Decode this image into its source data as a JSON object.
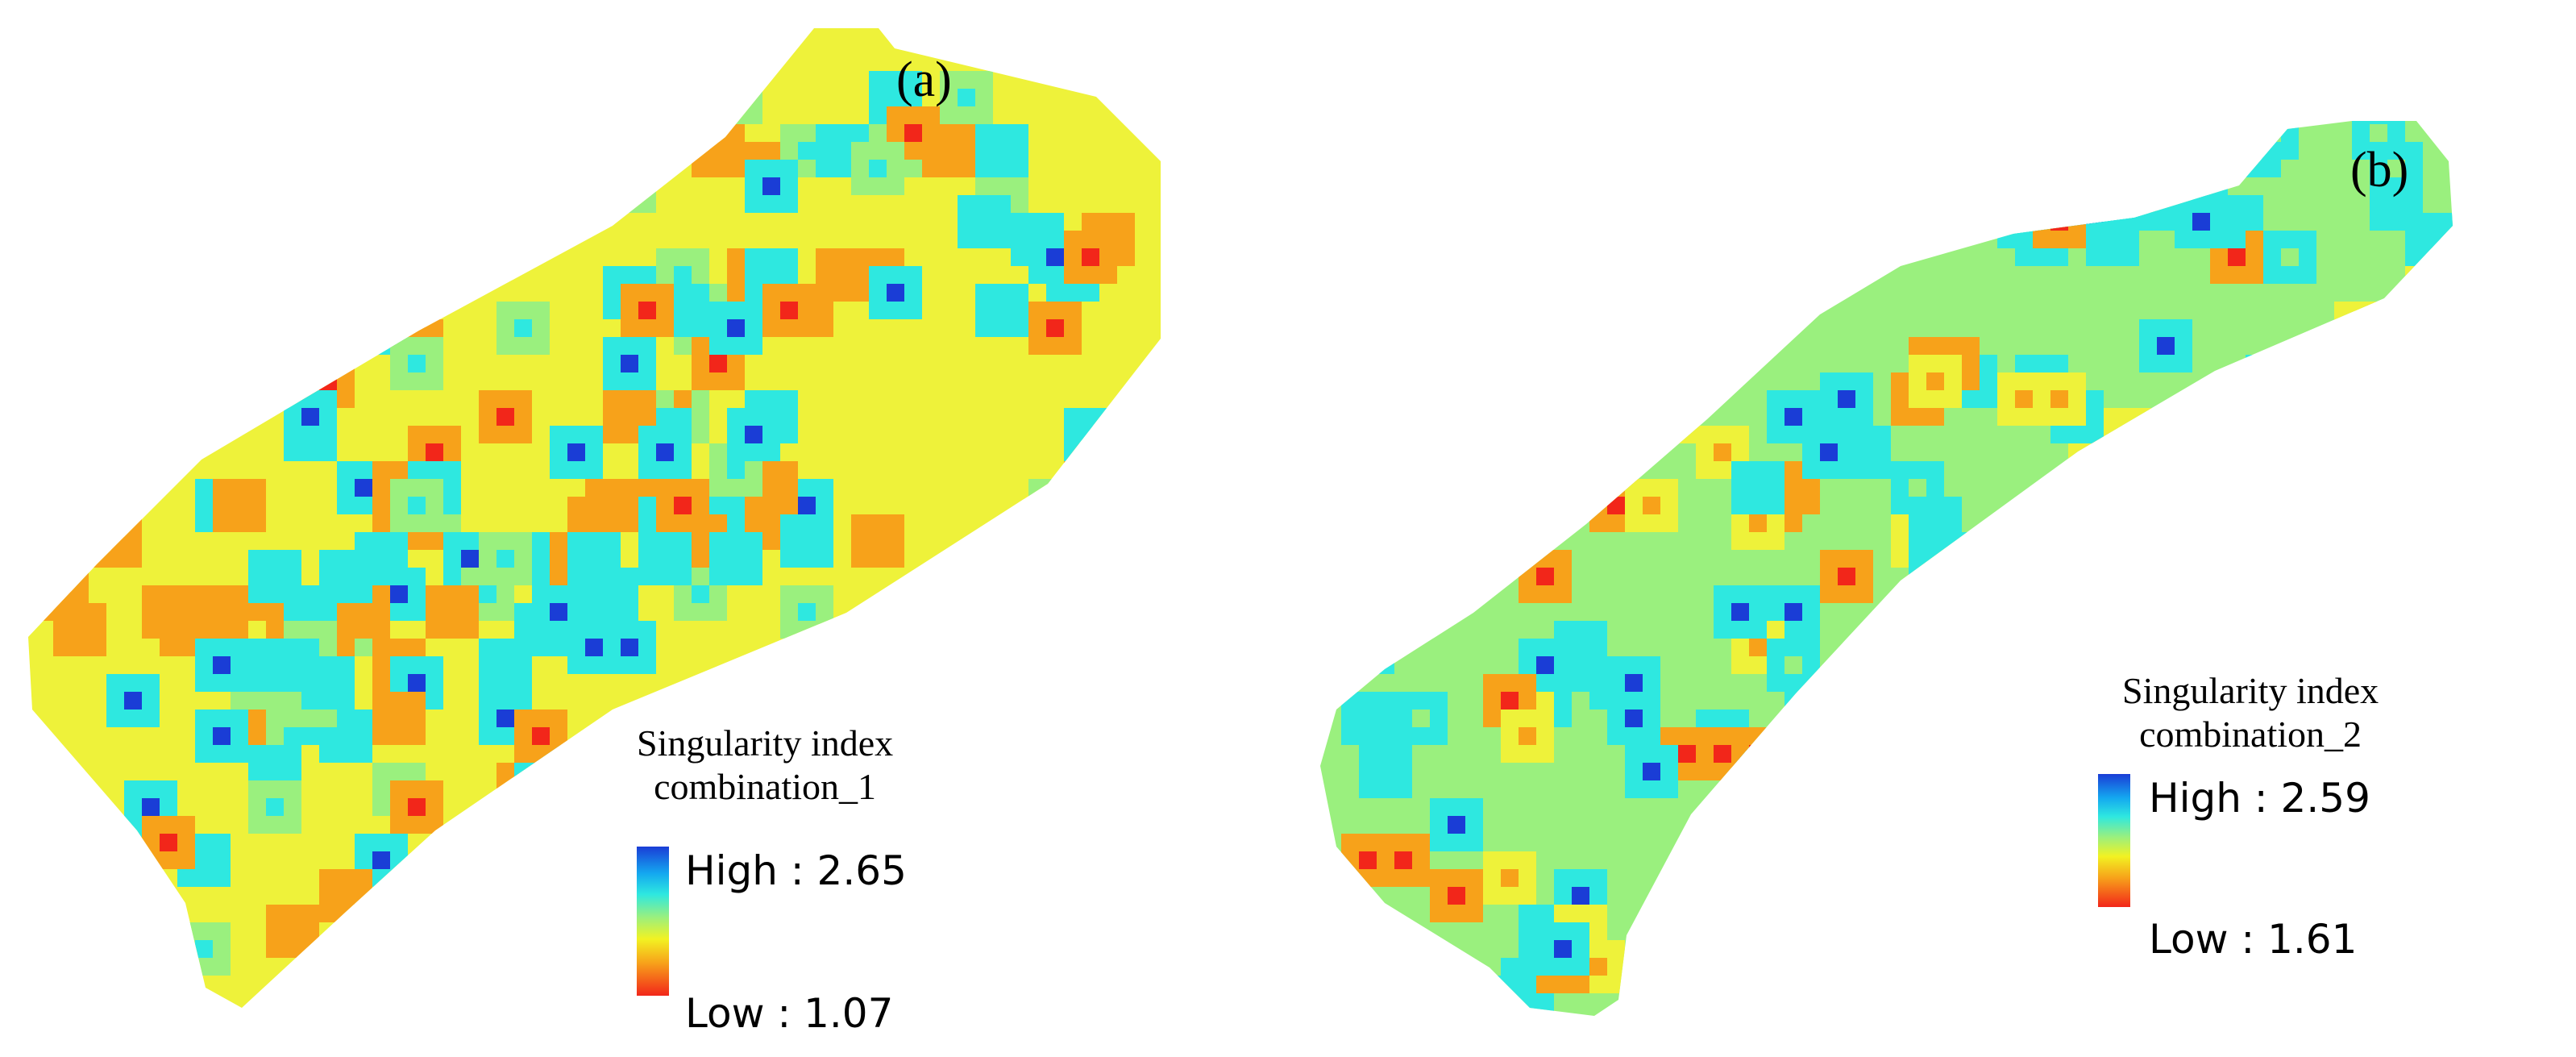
{
  "panels": [
    {
      "id": "a",
      "label": "(a)",
      "legend_title_line1": "Singularity index",
      "legend_title_line2": "combination_1",
      "legend_high": "High : 2.65",
      "legend_low": "Low : 1.07",
      "high_value": 2.65,
      "low_value": 1.07
    },
    {
      "id": "b",
      "label": "(b)",
      "legend_title_line1": "Singularity index",
      "legend_title_line2": "combination_2",
      "legend_high": "High : 2.59",
      "legend_low": "Low : 1.61",
      "high_value": 2.59,
      "low_value": 1.61
    }
  ],
  "colors": {
    "high": "#1a3dd6",
    "upper_mid": "#2ee8e0",
    "mid_a": "#eef23a",
    "mid_b": "#9af07e",
    "orange": "#f7a21a",
    "low": "#f2261a"
  }
}
